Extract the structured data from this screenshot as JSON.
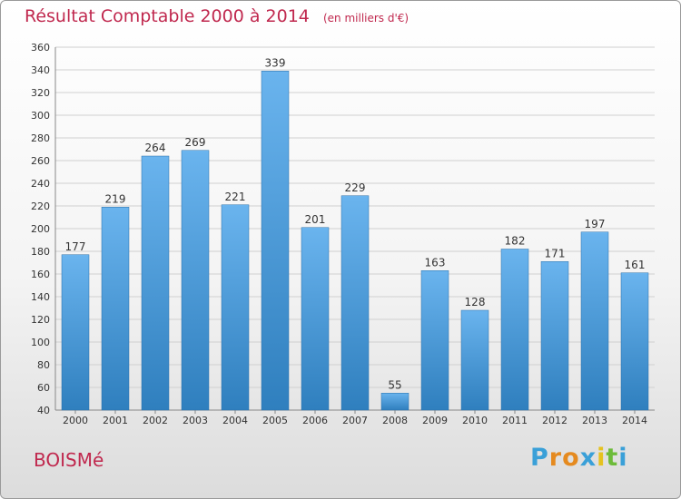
{
  "chart_data": {
    "type": "bar",
    "title": "Résultat Comptable 2000 à 2014",
    "subtitle": "(en milliers d'€)",
    "categories": [
      "2000",
      "2001",
      "2002",
      "2003",
      "2004",
      "2005",
      "2006",
      "2007",
      "2008",
      "2009",
      "2010",
      "2011",
      "2012",
      "2013",
      "2014"
    ],
    "values": [
      177,
      219,
      264,
      269,
      221,
      339,
      201,
      229,
      55,
      163,
      128,
      182,
      171,
      197,
      161
    ],
    "ylim": [
      40,
      360
    ],
    "ytick_step": 20,
    "grid": true,
    "xlabel": "",
    "ylabel": "",
    "bar_color_top": "#6ab4ee",
    "bar_color_bottom": "#2f7fbe",
    "grid_color": "#d0d0d0"
  },
  "footer": {
    "town": "BOISMé",
    "logo_letters": [
      "P",
      "r",
      "o",
      "x",
      "i",
      "t",
      "i"
    ],
    "logo_colors": [
      "#3aa0d8",
      "#e58a1f",
      "#e58a1f",
      "#3aa0d8",
      "#e5c21f",
      "#6dbb3a",
      "#3aa0d8"
    ]
  }
}
